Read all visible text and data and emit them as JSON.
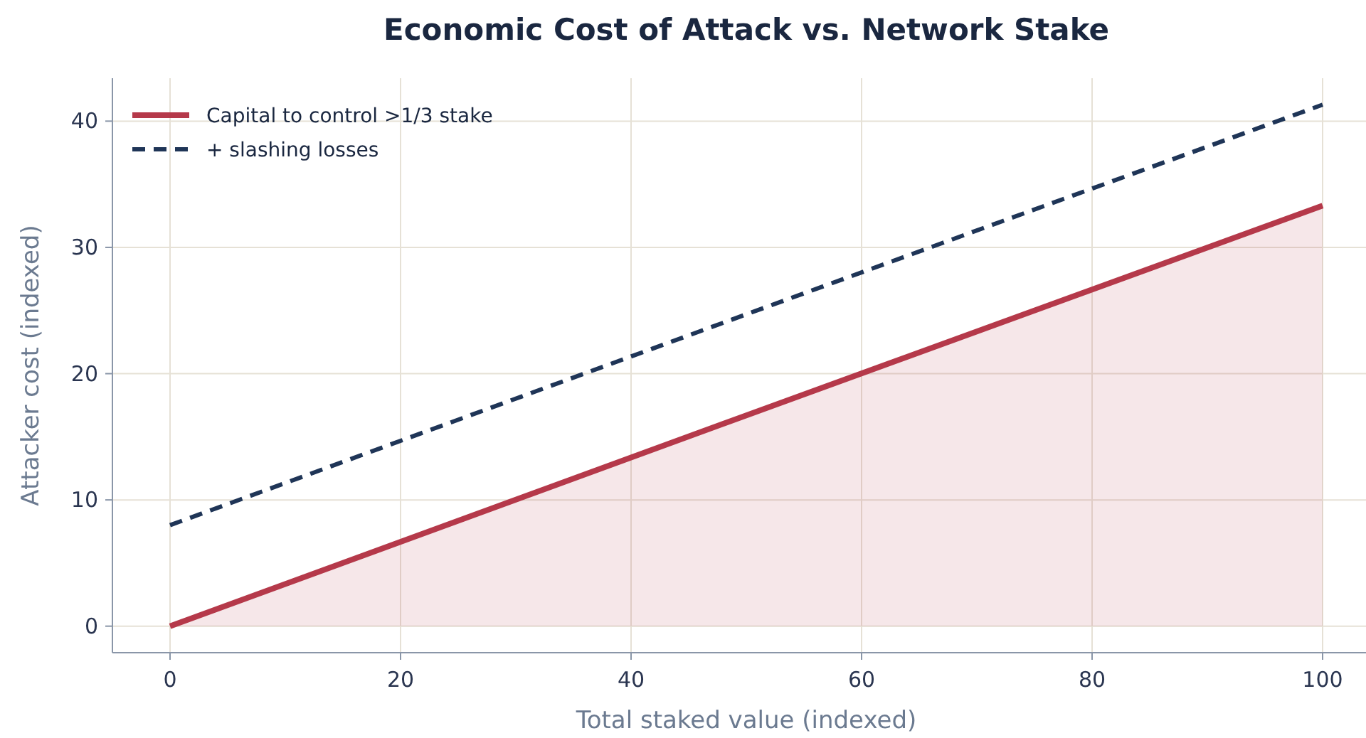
{
  "chart_data": {
    "type": "line",
    "title": "Economic Cost of Attack vs. Network Stake",
    "xlabel": "Total staked value (indexed)",
    "ylabel": "Attacker cost (indexed)",
    "x": [
      0,
      50,
      100
    ],
    "series": [
      {
        "name": "Capital to control >1/3 stake",
        "type": "area",
        "color": "#b5394a",
        "values": [
          0,
          16.7,
          33.3
        ],
        "line_style": "solid"
      },
      {
        "name": "+ slashing losses",
        "color": "#1f3557",
        "values": [
          8,
          24.7,
          41.3
        ],
        "line_style": "dashed"
      }
    ],
    "xlim": [
      -5,
      105
    ],
    "xticks": [
      0,
      20,
      40,
      60,
      80,
      100
    ],
    "ylim": [
      -2.1,
      43.4
    ],
    "yticks": [
      0,
      10,
      20,
      30,
      40
    ],
    "grid": true,
    "legend": "top left",
    "marker": "none"
  }
}
